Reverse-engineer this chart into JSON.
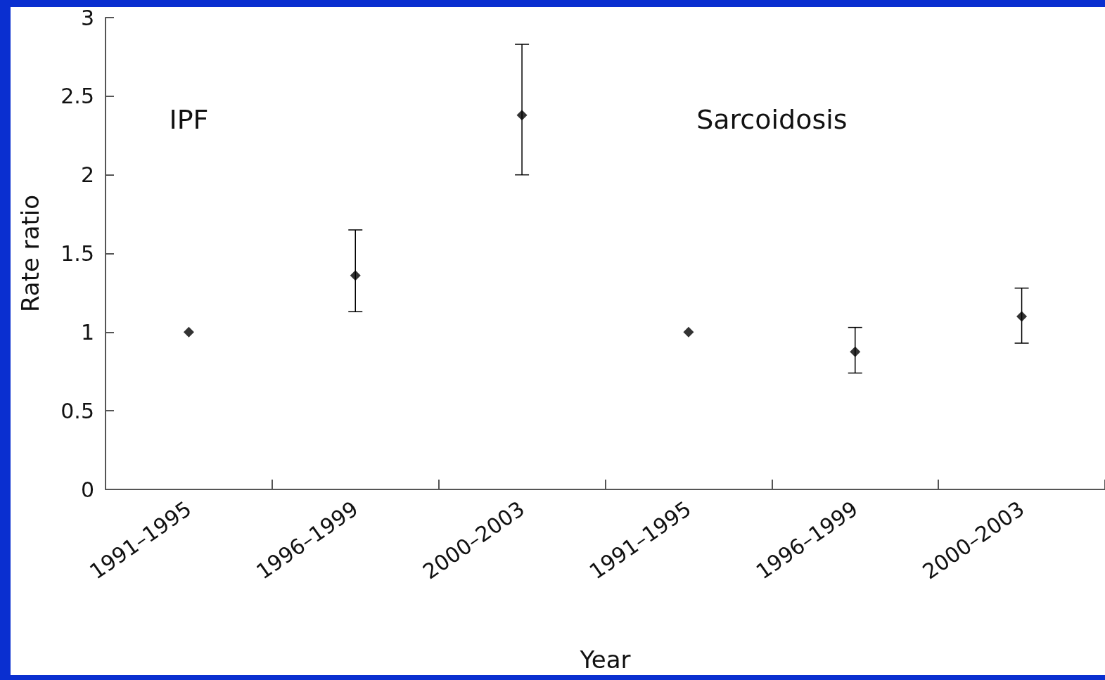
{
  "chart_data": {
    "type": "scatter",
    "xlabel": "Year",
    "ylabel": "Rate ratio",
    "categories": [
      "1991–1995",
      "1996–1999",
      "2000–2003",
      "1991–1995",
      "1996–1999",
      "2000–2003"
    ],
    "series": [
      {
        "color": "#000000",
        "values": [
          1.0,
          1.36,
          2.38,
          1.0,
          0.875,
          1.1
        ],
        "errors": [
          null,
          [
            1.13,
            1.65
          ],
          [
            2.0,
            2.83
          ],
          null,
          [
            0.74,
            1.03
          ],
          [
            0.93,
            1.28
          ]
        ]
      }
    ],
    "ylim": [
      0,
      3
    ],
    "yticks": [
      0,
      0.5,
      1,
      1.5,
      2,
      2.5,
      3
    ],
    "annotations": [
      "IPF",
      "Sarcoidosis"
    ],
    "marker": "diamond",
    "grid": false
  }
}
